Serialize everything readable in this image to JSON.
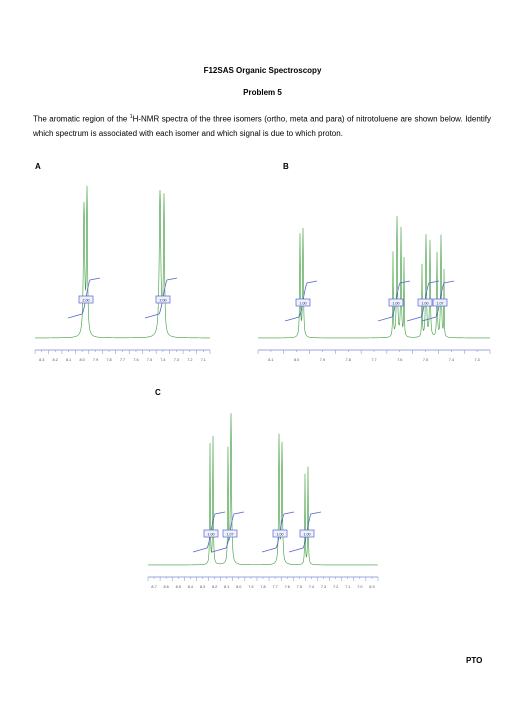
{
  "header": {
    "title": "F12SAS Organic Spectroscopy",
    "problem": "Problem 5"
  },
  "question": {
    "before": "The aromatic region of the ",
    "superscript": "1",
    "after": "H-NMR spectra of the three isomers (ortho, meta and para) of nitrotoluene are shown below. Identify which spectrum is associated with each isomer and which signal is due to which proton."
  },
  "spectra": [
    {
      "label": "A",
      "axis_labels": [
        "8.3",
        "8.2",
        "8.1",
        "8.0",
        "7.9",
        "7.8",
        "7.7",
        "7.6",
        "7.5",
        "7.4",
        "7.3",
        "7.2",
        "7.1"
      ],
      "integrals": [
        "2.00",
        "2.00"
      ]
    },
    {
      "label": "B",
      "axis_labels": [
        "8.1",
        "8.0",
        "7.9",
        "7.8",
        "7.7",
        "7.6",
        "7.5",
        "7.4",
        "7.3"
      ],
      "integrals": [
        "1.00",
        "1.00",
        "1.00",
        "1.07"
      ]
    },
    {
      "label": "C",
      "axis_labels": [
        "8.7",
        "8.6",
        "8.5",
        "8.4",
        "8.3",
        "8.2",
        "8.1",
        "8.0",
        "7.9",
        "7.8",
        "7.7",
        "7.6",
        "7.5",
        "7.4",
        "7.3",
        "7.2",
        "7.1",
        "7.0",
        "6.9"
      ],
      "integrals": [
        "1.00",
        "1.07",
        "1.00",
        "1.00"
      ]
    }
  ],
  "footer": "PTO"
}
